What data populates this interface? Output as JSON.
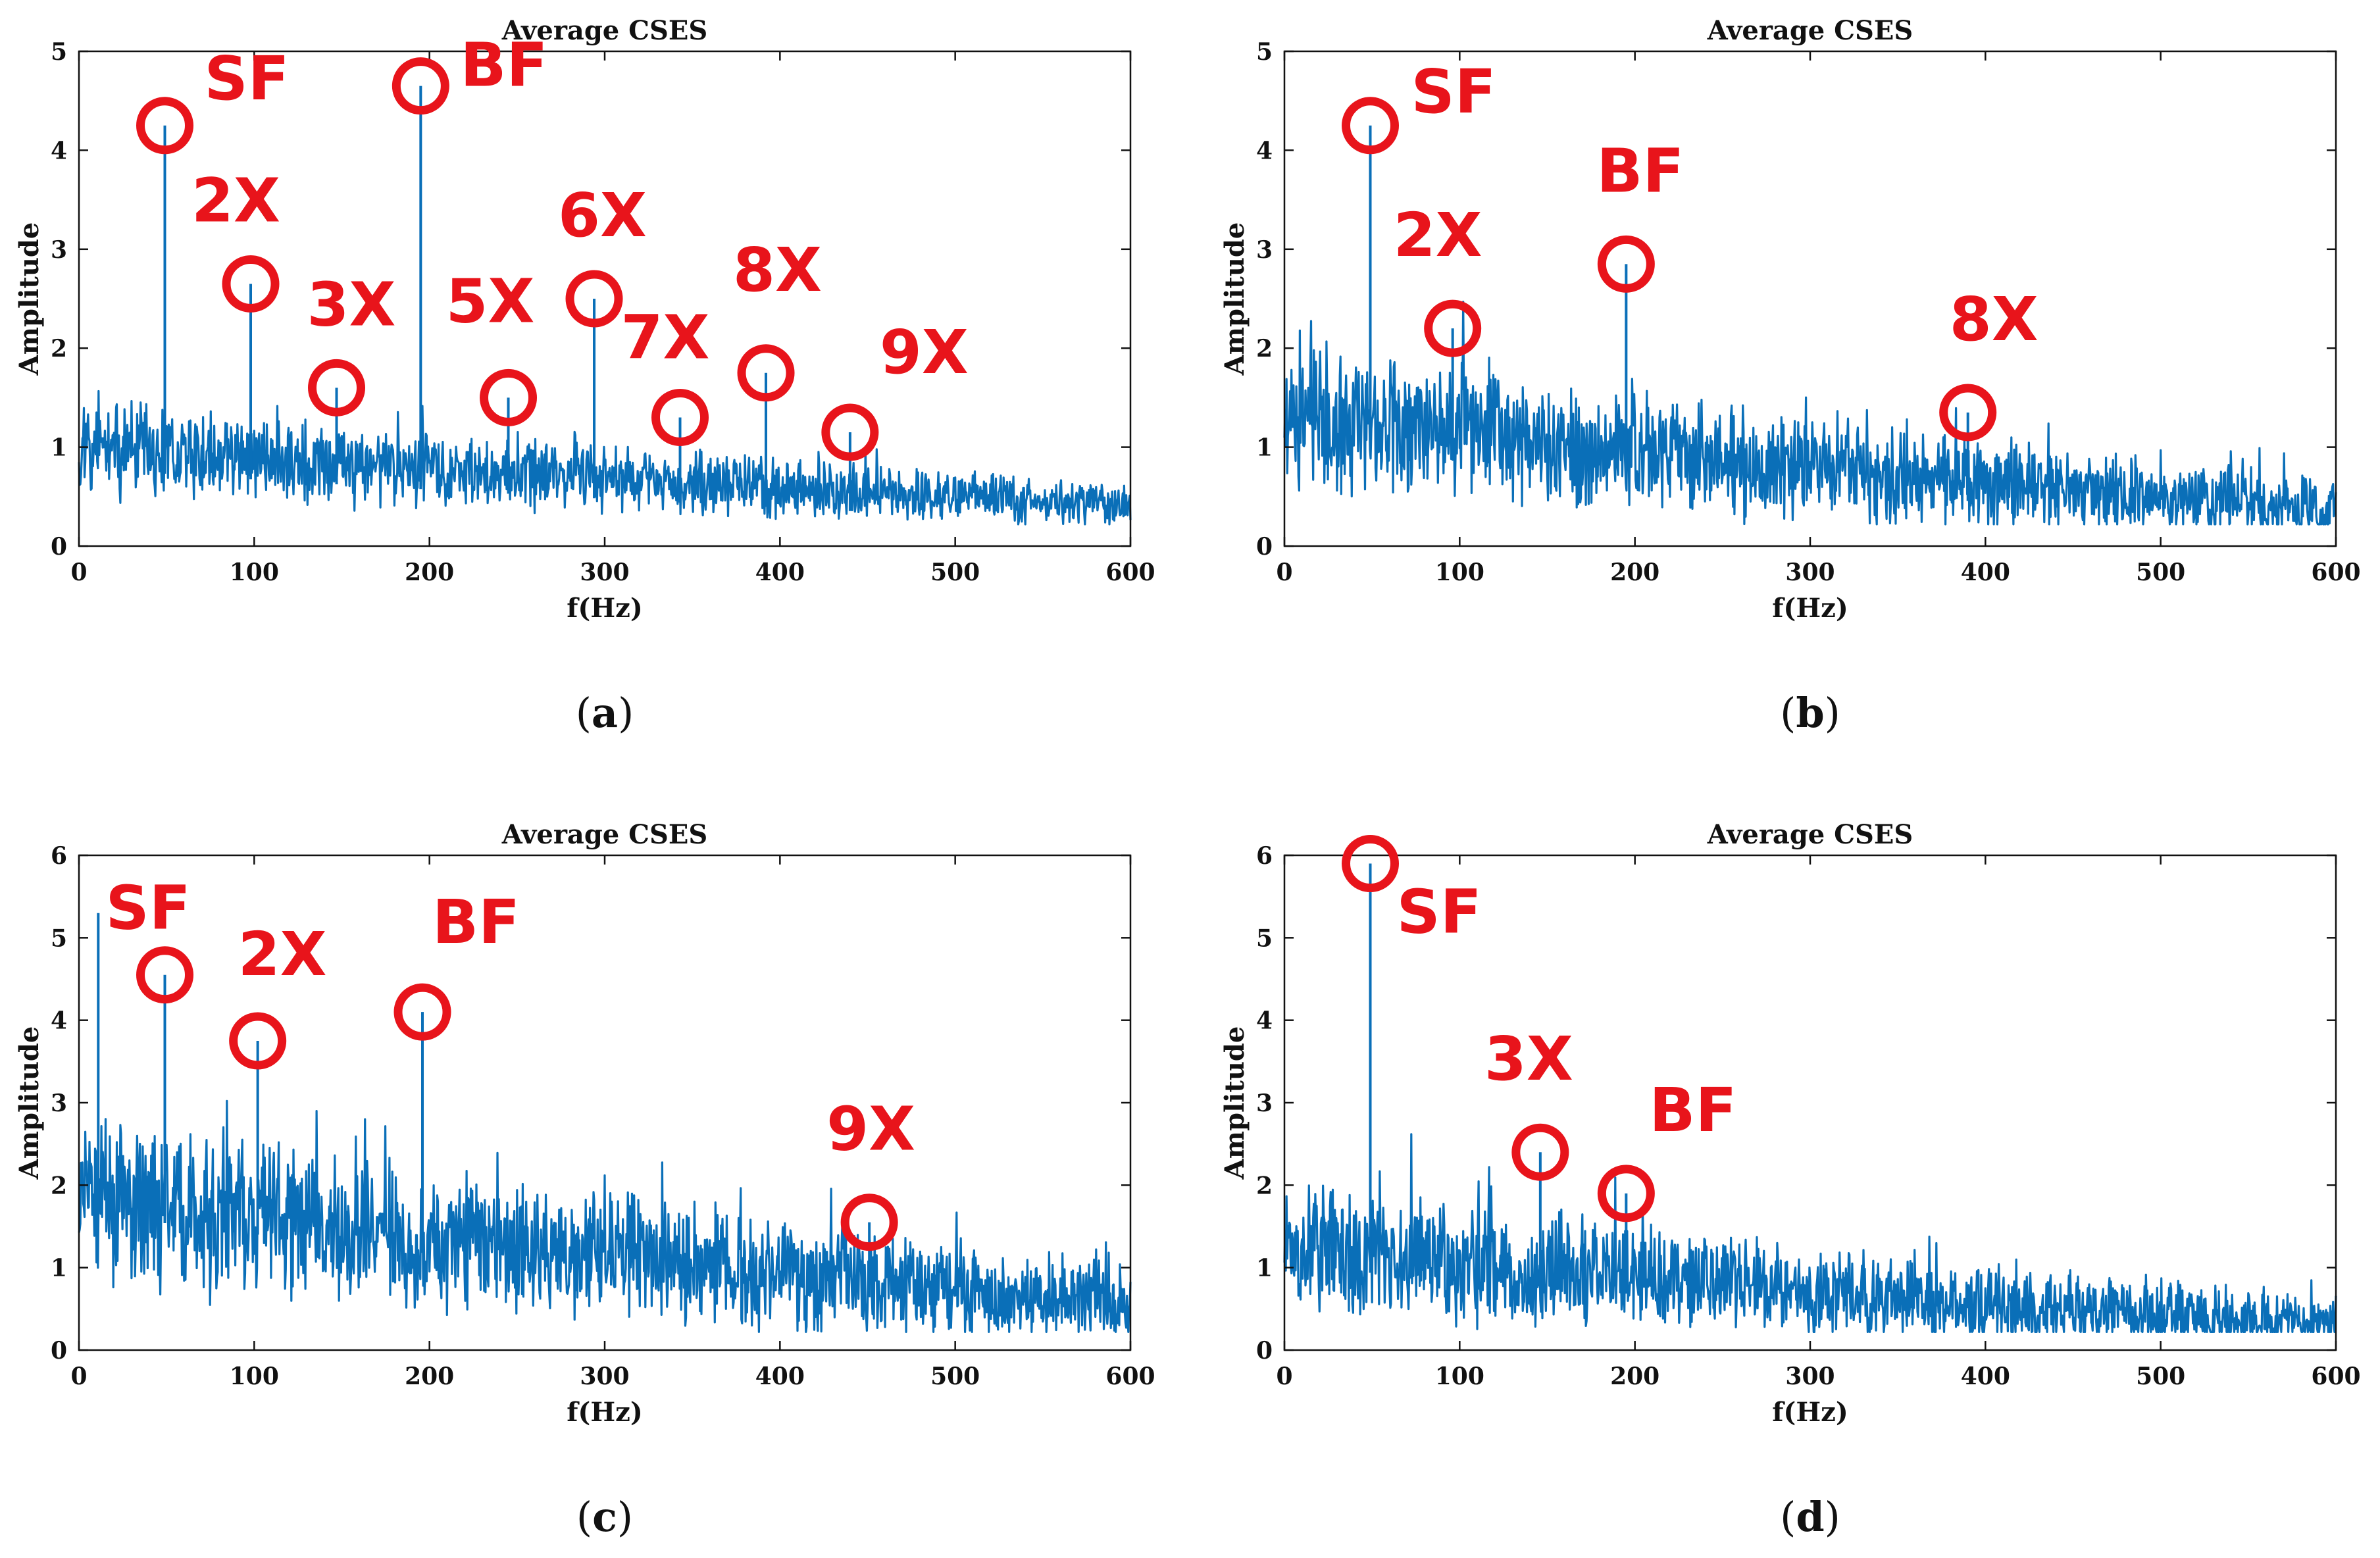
{
  "colors": {
    "series": "#0a6fb8",
    "annotation": "#e8141b",
    "axis": "#111111"
  },
  "chart_data": [
    {
      "type": "line",
      "panel": "a",
      "subfigure_label": "a",
      "title": "Average CSES",
      "xlabel": "f(Hz)",
      "ylabel": "Amplitude",
      "xlim": [
        0,
        600
      ],
      "ylim": [
        0,
        5
      ],
      "xticks": [
        0,
        100,
        200,
        300,
        400,
        500,
        600
      ],
      "yticks": [
        0,
        1,
        2,
        3,
        4,
        5
      ],
      "grid": false,
      "noise_profile": {
        "start": 1.0,
        "end": 0.42,
        "spread": 0.55,
        "seed": 11
      },
      "peaks": [
        {
          "x": 49,
          "y": 4.25,
          "label": "SF"
        },
        {
          "x": 98,
          "y": 2.65,
          "label": "2X"
        },
        {
          "x": 147,
          "y": 1.6,
          "label": "3X"
        },
        {
          "x": 195,
          "y": 4.65,
          "label": "BF"
        },
        {
          "x": 245,
          "y": 1.5,
          "label": "5X"
        },
        {
          "x": 294,
          "y": 2.5,
          "label": "6X"
        },
        {
          "x": 343,
          "y": 1.3,
          "label": "7X"
        },
        {
          "x": 392,
          "y": 1.75,
          "label": "8X"
        },
        {
          "x": 440,
          "y": 1.15,
          "label": "9X"
        }
      ]
    },
    {
      "type": "line",
      "panel": "b",
      "subfigure_label": "b",
      "title": "Average CSES",
      "xlabel": "f(Hz)",
      "ylabel": "Amplitude",
      "xlim": [
        0,
        600
      ],
      "ylim": [
        0,
        5
      ],
      "xticks": [
        0,
        100,
        200,
        300,
        400,
        500,
        600
      ],
      "yticks": [
        0,
        1,
        2,
        3,
        4,
        5
      ],
      "grid": false,
      "noise_profile": {
        "start": 1.35,
        "end": 0.35,
        "spread": 0.85,
        "seed": 23
      },
      "peaks": [
        {
          "x": 49,
          "y": 4.25,
          "label": "SF"
        },
        {
          "x": 96,
          "y": 2.2,
          "label": "2X"
        },
        {
          "x": 195,
          "y": 2.85,
          "label": "BF"
        },
        {
          "x": 390,
          "y": 1.35,
          "label": "8X"
        }
      ]
    },
    {
      "type": "line",
      "panel": "c",
      "subfigure_label": "c",
      "title": "Average CSES",
      "xlabel": "f(Hz)",
      "ylabel": "Amplitude",
      "xlim": [
        0,
        600
      ],
      "ylim": [
        0,
        6
      ],
      "xticks": [
        0,
        100,
        200,
        300,
        400,
        500,
        600
      ],
      "yticks": [
        0,
        1,
        2,
        3,
        4,
        5,
        6
      ],
      "grid": false,
      "noise_profile": {
        "start": 1.9,
        "end": 0.55,
        "spread": 1.25,
        "seed": 37
      },
      "peaks": [
        {
          "x": 11,
          "y": 5.3,
          "label": ""
        },
        {
          "x": 49,
          "y": 4.55,
          "label": "SF"
        },
        {
          "x": 102,
          "y": 3.75,
          "label": "2X"
        },
        {
          "x": 196,
          "y": 4.1,
          "label": "BF"
        },
        {
          "x": 451,
          "y": 1.55,
          "label": "9X"
        }
      ]
    },
    {
      "type": "line",
      "panel": "d",
      "subfigure_label": "d",
      "title": "Average CSES",
      "xlabel": "f(Hz)",
      "ylabel": "Amplitude",
      "xlim": [
        0,
        600
      ],
      "ylim": [
        0,
        6
      ],
      "xticks": [
        0,
        100,
        200,
        300,
        400,
        500,
        600
      ],
      "yticks": [
        0,
        1,
        2,
        3,
        4,
        5,
        6
      ],
      "grid": false,
      "noise_profile": {
        "start": 1.25,
        "end": 0.3,
        "spread": 0.95,
        "seed": 53
      },
      "peaks": [
        {
          "x": 49,
          "y": 5.9,
          "label": "SF"
        },
        {
          "x": 146,
          "y": 2.4,
          "label": "3X"
        },
        {
          "x": 195,
          "y": 1.9,
          "label": "BF"
        }
      ]
    }
  ]
}
